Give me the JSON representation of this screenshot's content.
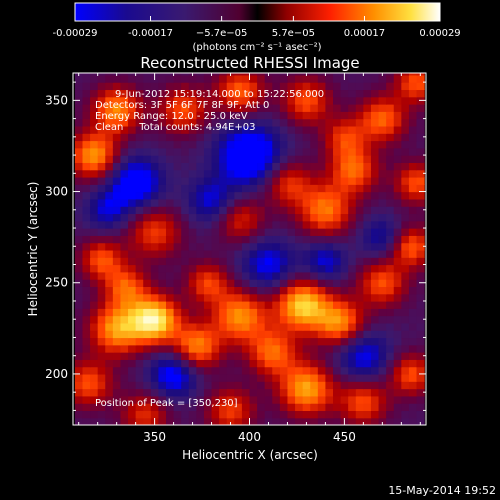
{
  "chart_data": {
    "type": "heatmap",
    "title": "Reconstructed RHESSI Image",
    "xlabel": "Heliocentric X (arcsec)",
    "ylabel": "Heliocentric Y (arcsec)",
    "xlim": [
      307,
      493
    ],
    "ylim": [
      172,
      365
    ],
    "x_ticks": [
      350,
      400,
      450
    ],
    "y_ticks": [
      200,
      250,
      300,
      350
    ],
    "colorbar": {
      "range": [
        -0.00029,
        0.00029
      ],
      "tick_values": [
        -0.00029,
        -0.00017,
        -5.7e-05,
        5.7e-05,
        0.00017,
        0.00029
      ],
      "tick_labels": [
        "-0.00029",
        "-0.00017",
        "−5.7e−05",
        "5.7e−05",
        "0.00017",
        "0.00029"
      ],
      "units_label": "(photons cm⁻² s⁻¹ asec⁻²)"
    },
    "annotations": [
      "9-Jun-2012 15:19:14.000 to 15:22:56.000",
      "Detectors: 3F 5F 6F 7F 8F 9F, Att 0",
      "Energy Range: 12.0 - 25.0 keV",
      "Clean     Total counts: 4.94E+03"
    ],
    "peak_label": "Position of Peak = [350,230]",
    "peak_position": [
      350,
      230
    ],
    "footer_date": "15-May-2014 19:52",
    "grid": false,
    "colormap": [
      "#0000ff",
      "#1a0a80",
      "#3a1a70",
      "#600040",
      "#b00000",
      "#ff4000",
      "#ff9000",
      "#ffe040",
      "#ffffe0"
    ],
    "grid_x": [
      310,
      492,
      4
    ],
    "grid_y": [
      174,
      366,
      4
    ],
    "blobs": [
      {
        "x": 350,
        "y": 230,
        "amp": 1.0,
        "s": 9
      },
      {
        "x": 330,
        "y": 225,
        "amp": 0.75,
        "s": 10
      },
      {
        "x": 372,
        "y": 215,
        "amp": 0.7,
        "s": 9
      },
      {
        "x": 395,
        "y": 232,
        "amp": 0.72,
        "s": 10
      },
      {
        "x": 428,
        "y": 238,
        "amp": 0.9,
        "s": 10
      },
      {
        "x": 448,
        "y": 228,
        "amp": 0.7,
        "s": 9
      },
      {
        "x": 412,
        "y": 212,
        "amp": 0.6,
        "s": 9
      },
      {
        "x": 430,
        "y": 192,
        "amp": 0.78,
        "s": 10
      },
      {
        "x": 460,
        "y": 185,
        "amp": 0.55,
        "s": 9
      },
      {
        "x": 335,
        "y": 248,
        "amp": 0.55,
        "s": 8
      },
      {
        "x": 322,
        "y": 263,
        "amp": 0.55,
        "s": 8
      },
      {
        "x": 378,
        "y": 250,
        "amp": 0.5,
        "s": 8
      },
      {
        "x": 350,
        "y": 278,
        "amp": 0.5,
        "s": 10
      },
      {
        "x": 395,
        "y": 285,
        "amp": 0.45,
        "s": 9
      },
      {
        "x": 470,
        "y": 250,
        "amp": 0.55,
        "s": 9
      },
      {
        "x": 485,
        "y": 270,
        "amp": 0.6,
        "s": 8
      },
      {
        "x": 440,
        "y": 290,
        "amp": 0.65,
        "s": 10
      },
      {
        "x": 420,
        "y": 305,
        "amp": 0.5,
        "s": 9
      },
      {
        "x": 455,
        "y": 312,
        "amp": 0.6,
        "s": 9
      },
      {
        "x": 488,
        "y": 305,
        "amp": 0.55,
        "s": 8
      },
      {
        "x": 318,
        "y": 320,
        "amp": 0.75,
        "s": 9
      },
      {
        "x": 330,
        "y": 345,
        "amp": 0.7,
        "s": 9
      },
      {
        "x": 365,
        "y": 345,
        "amp": 0.55,
        "s": 9
      },
      {
        "x": 395,
        "y": 355,
        "amp": 0.6,
        "s": 9
      },
      {
        "x": 430,
        "y": 350,
        "amp": 0.55,
        "s": 9
      },
      {
        "x": 470,
        "y": 340,
        "amp": 0.6,
        "s": 9
      },
      {
        "x": 488,
        "y": 360,
        "amp": 0.55,
        "s": 8
      },
      {
        "x": 450,
        "y": 330,
        "amp": 0.45,
        "s": 8
      },
      {
        "x": 315,
        "y": 195,
        "amp": 0.55,
        "s": 9
      },
      {
        "x": 345,
        "y": 178,
        "amp": 0.45,
        "s": 9
      },
      {
        "x": 390,
        "y": 180,
        "amp": 0.5,
        "s": 9
      },
      {
        "x": 485,
        "y": 200,
        "amp": 0.55,
        "s": 8
      },
      {
        "x": 400,
        "y": 320,
        "amp": -0.75,
        "s": 12
      },
      {
        "x": 340,
        "y": 305,
        "amp": -0.65,
        "s": 10
      },
      {
        "x": 360,
        "y": 200,
        "amp": -0.6,
        "s": 9
      },
      {
        "x": 460,
        "y": 210,
        "amp": -0.5,
        "s": 10
      },
      {
        "x": 410,
        "y": 260,
        "amp": -0.5,
        "s": 10
      },
      {
        "x": 470,
        "y": 275,
        "amp": -0.4,
        "s": 8
      },
      {
        "x": 380,
        "y": 295,
        "amp": -0.45,
        "s": 9
      },
      {
        "x": 325,
        "y": 290,
        "amp": -0.4,
        "s": 8
      },
      {
        "x": 440,
        "y": 262,
        "amp": -0.45,
        "s": 8
      }
    ]
  }
}
